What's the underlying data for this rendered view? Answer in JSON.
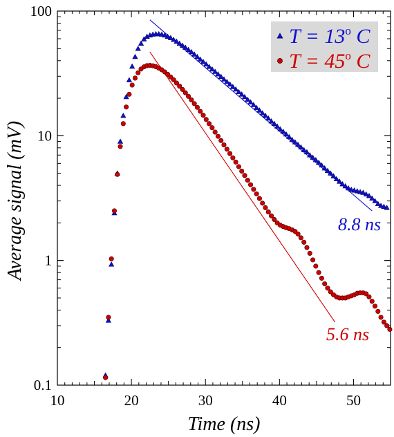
{
  "chart_data": {
    "type": "scatter",
    "title": "",
    "xlabel": "Time (ns)",
    "ylabel": "Average signal (mV)",
    "xlim": [
      10,
      55
    ],
    "ylim": [
      0.1,
      100
    ],
    "yscale": "log",
    "xticks": [
      10,
      20,
      30,
      40,
      50
    ],
    "xtick_labels": [
      "10",
      "20",
      "30",
      "40",
      "50"
    ],
    "yticks": [
      0.1,
      1,
      10,
      100
    ],
    "ytick_labels": [
      "0.1",
      "1",
      "10",
      "100"
    ],
    "grid": false,
    "legend_position": "top-right",
    "colors": {
      "series_13C": "#1010d0",
      "series_45C": "#d00000",
      "legend_background": "#d9d9d9"
    },
    "series": [
      {
        "name": "T = 13° C",
        "legend_parts": {
          "prefix": "T = 13",
          "degree": "o",
          "suffix": " C"
        },
        "marker": "triangle",
        "color": "#1010d0",
        "fit_label": "8.8 ns",
        "fit": [
          [
            22.5,
            85
          ],
          [
            52.5,
            2.5
          ]
        ],
        "points": [
          [
            16.5,
            0.12
          ],
          [
            16.9,
            0.33
          ],
          [
            17.3,
            0.93
          ],
          [
            17.7,
            2.4
          ],
          [
            18.1,
            5.0
          ],
          [
            18.5,
            9.0
          ],
          [
            18.9,
            14.5
          ],
          [
            19.3,
            20.5
          ],
          [
            19.7,
            28
          ],
          [
            20.1,
            36
          ],
          [
            20.5,
            43
          ],
          [
            20.9,
            50
          ],
          [
            21.3,
            55
          ],
          [
            21.7,
            59.5
          ],
          [
            22.1,
            62.5
          ],
          [
            22.5,
            64
          ],
          [
            22.9,
            65
          ],
          [
            23.3,
            65.5
          ],
          [
            23.7,
            65.5
          ],
          [
            24.1,
            65
          ],
          [
            24.5,
            64
          ],
          [
            24.9,
            62.5
          ],
          [
            25.3,
            61
          ],
          [
            25.7,
            59
          ],
          [
            26.1,
            57
          ],
          [
            26.5,
            55
          ],
          [
            26.9,
            53
          ],
          [
            27.3,
            51
          ],
          [
            27.7,
            49
          ],
          [
            28.1,
            47
          ],
          [
            28.5,
            45
          ],
          [
            28.9,
            43
          ],
          [
            29.3,
            41
          ],
          [
            29.7,
            39.2
          ],
          [
            30.1,
            37.5
          ],
          [
            30.5,
            35.8
          ],
          [
            30.9,
            34.2
          ],
          [
            31.3,
            32.7
          ],
          [
            31.7,
            31.2
          ],
          [
            32.1,
            29.8
          ],
          [
            32.5,
            28.4
          ],
          [
            32.9,
            27.1
          ],
          [
            33.3,
            25.9
          ],
          [
            33.7,
            24.7
          ],
          [
            34.1,
            23.6
          ],
          [
            34.5,
            22.5
          ],
          [
            34.9,
            21.5
          ],
          [
            35.3,
            20.5
          ],
          [
            35.7,
            19.5
          ],
          [
            36.1,
            18.6
          ],
          [
            36.5,
            17.7
          ],
          [
            36.9,
            16.8
          ],
          [
            37.3,
            16.0
          ],
          [
            37.7,
            15.2
          ],
          [
            38.1,
            14.5
          ],
          [
            38.5,
            13.8
          ],
          [
            38.9,
            13.1
          ],
          [
            39.3,
            12.5
          ],
          [
            39.7,
            11.9
          ],
          [
            40.1,
            11.3
          ],
          [
            40.5,
            10.8
          ],
          [
            40.9,
            10.3
          ],
          [
            41.3,
            9.8
          ],
          [
            41.7,
            9.3
          ],
          [
            42.1,
            8.9
          ],
          [
            42.5,
            8.5
          ],
          [
            42.9,
            8.1
          ],
          [
            43.3,
            7.7
          ],
          [
            43.7,
            7.4
          ],
          [
            44.1,
            7.0
          ],
          [
            44.5,
            6.7
          ],
          [
            44.9,
            6.4
          ],
          [
            45.3,
            6.1
          ],
          [
            45.7,
            5.8
          ],
          [
            46.1,
            5.5
          ],
          [
            46.5,
            5.25
          ],
          [
            46.9,
            5.0
          ],
          [
            47.3,
            4.75
          ],
          [
            47.7,
            4.5
          ],
          [
            48.1,
            4.3
          ],
          [
            48.5,
            4.1
          ],
          [
            48.9,
            3.95
          ],
          [
            49.3,
            3.8
          ],
          [
            49.7,
            3.7
          ],
          [
            50.1,
            3.65
          ],
          [
            50.5,
            3.6
          ],
          [
            50.9,
            3.55
          ],
          [
            51.3,
            3.5
          ],
          [
            51.7,
            3.4
          ],
          [
            52.1,
            3.3
          ],
          [
            52.5,
            3.15
          ],
          [
            52.9,
            3.0
          ],
          [
            53.3,
            2.85
          ],
          [
            53.7,
            2.75
          ],
          [
            54.1,
            2.7
          ],
          [
            54.5,
            2.65
          ]
        ]
      },
      {
        "name": "T = 45° C",
        "legend_parts": {
          "prefix": "T = 45",
          "degree": "o",
          "suffix": " C"
        },
        "marker": "circle",
        "color": "#d00000",
        "fit_label": "5.6 ns",
        "fit": [
          [
            22.5,
            47
          ],
          [
            47.5,
            0.32
          ]
        ],
        "points": [
          [
            16.5,
            0.115
          ],
          [
            16.9,
            0.35
          ],
          [
            17.3,
            1.03
          ],
          [
            17.7,
            2.5
          ],
          [
            18.1,
            4.9
          ],
          [
            18.5,
            8.2
          ],
          [
            18.9,
            12.5
          ],
          [
            19.3,
            17
          ],
          [
            19.7,
            21.5
          ],
          [
            20.1,
            25.5
          ],
          [
            20.5,
            29
          ],
          [
            20.9,
            32
          ],
          [
            21.3,
            34.3
          ],
          [
            21.7,
            35.7
          ],
          [
            22.1,
            36.5
          ],
          [
            22.5,
            36.7
          ],
          [
            22.9,
            36.4
          ],
          [
            23.3,
            35.8
          ],
          [
            23.7,
            34.9
          ],
          [
            24.1,
            33.8
          ],
          [
            24.5,
            32.5
          ],
          [
            24.9,
            31.1
          ],
          [
            25.3,
            29.6
          ],
          [
            25.7,
            28.1
          ],
          [
            26.1,
            26.5
          ],
          [
            26.5,
            25.0
          ],
          [
            26.9,
            23.5
          ],
          [
            27.3,
            22.1
          ],
          [
            27.7,
            20.7
          ],
          [
            28.1,
            19.4
          ],
          [
            28.5,
            18.1
          ],
          [
            28.9,
            16.9
          ],
          [
            29.3,
            15.7
          ],
          [
            29.7,
            14.6
          ],
          [
            30.1,
            13.5
          ],
          [
            30.5,
            12.5
          ],
          [
            30.9,
            11.6
          ],
          [
            31.3,
            10.7
          ],
          [
            31.7,
            9.9
          ],
          [
            32.1,
            9.15
          ],
          [
            32.5,
            8.45
          ],
          [
            32.9,
            7.8
          ],
          [
            33.3,
            7.2
          ],
          [
            33.7,
            6.65
          ],
          [
            34.1,
            6.15
          ],
          [
            34.5,
            5.65
          ],
          [
            34.9,
            5.2
          ],
          [
            35.3,
            4.8
          ],
          [
            35.7,
            4.4
          ],
          [
            36.1,
            4.05
          ],
          [
            36.5,
            3.72
          ],
          [
            36.9,
            3.42
          ],
          [
            37.3,
            3.14
          ],
          [
            37.7,
            2.88
          ],
          [
            38.1,
            2.65
          ],
          [
            38.5,
            2.45
          ],
          [
            38.9,
            2.28
          ],
          [
            39.3,
            2.13
          ],
          [
            39.7,
            2.0
          ],
          [
            40.1,
            1.92
          ],
          [
            40.5,
            1.87
          ],
          [
            40.9,
            1.83
          ],
          [
            41.3,
            1.8
          ],
          [
            41.7,
            1.76
          ],
          [
            42.1,
            1.71
          ],
          [
            42.5,
            1.63
          ],
          [
            42.9,
            1.52
          ],
          [
            43.3,
            1.4
          ],
          [
            43.7,
            1.27
          ],
          [
            44.1,
            1.14
          ],
          [
            44.5,
            1.01
          ],
          [
            44.9,
            0.9
          ],
          [
            45.3,
            0.8
          ],
          [
            45.7,
            0.72
          ],
          [
            46.1,
            0.65
          ],
          [
            46.5,
            0.6
          ],
          [
            46.9,
            0.56
          ],
          [
            47.3,
            0.53
          ],
          [
            47.7,
            0.51
          ],
          [
            48.1,
            0.5
          ],
          [
            48.5,
            0.5
          ],
          [
            48.9,
            0.5
          ],
          [
            49.3,
            0.51
          ],
          [
            49.7,
            0.52
          ],
          [
            50.1,
            0.53
          ],
          [
            50.5,
            0.545
          ],
          [
            50.9,
            0.55
          ],
          [
            51.3,
            0.55
          ],
          [
            51.7,
            0.54
          ],
          [
            52.1,
            0.51
          ],
          [
            52.5,
            0.47
          ],
          [
            52.9,
            0.43
          ],
          [
            53.3,
            0.39
          ],
          [
            53.7,
            0.35
          ],
          [
            54.1,
            0.32
          ],
          [
            54.5,
            0.3
          ],
          [
            54.9,
            0.28
          ]
        ]
      }
    ]
  }
}
